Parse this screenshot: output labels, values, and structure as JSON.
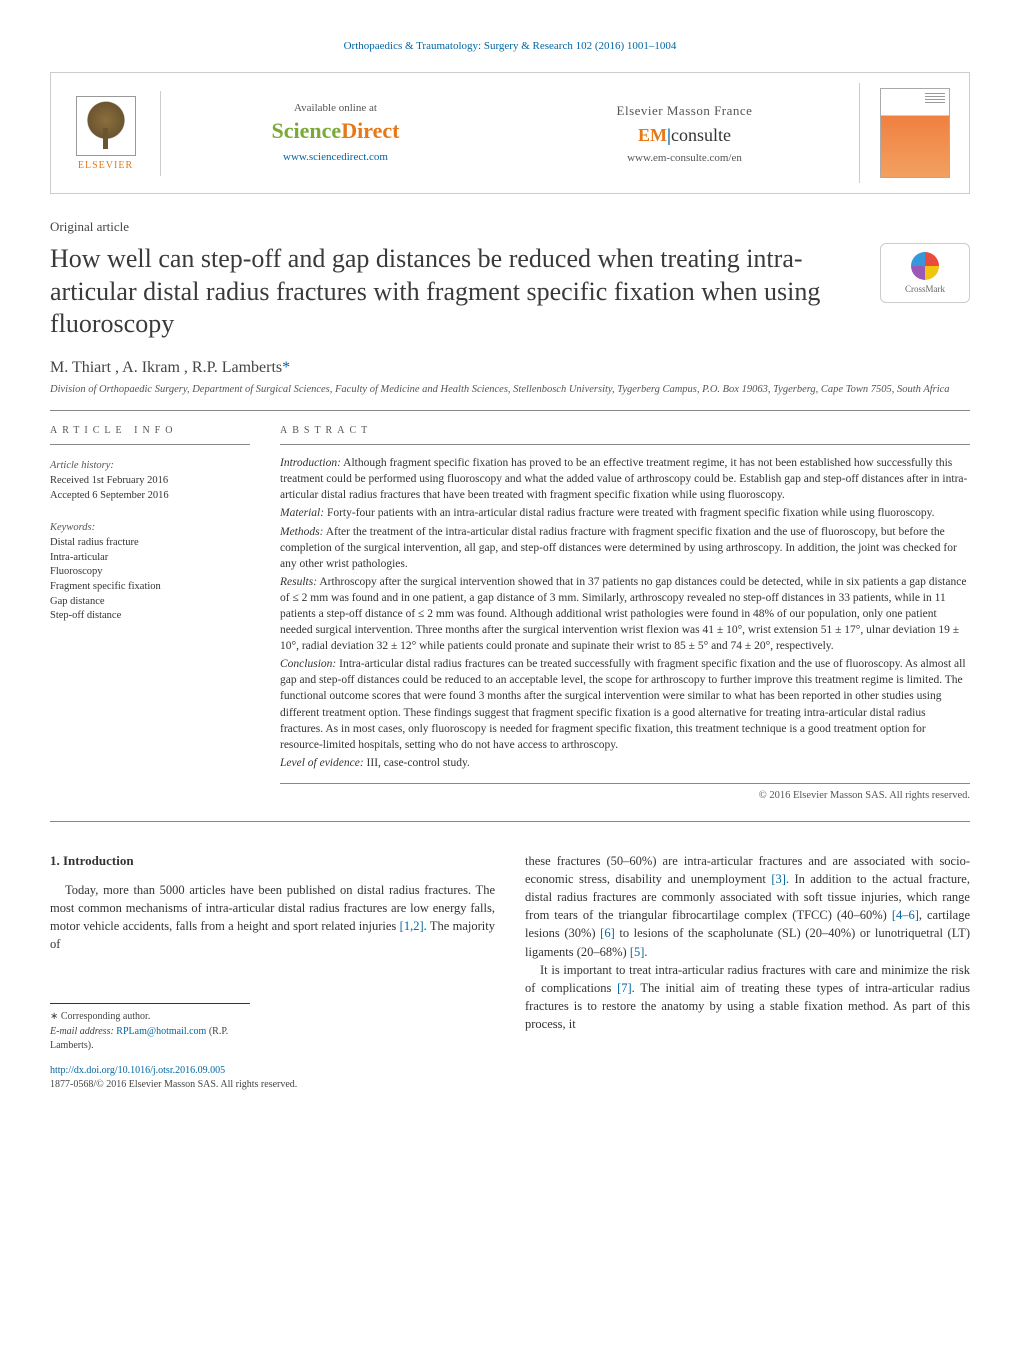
{
  "running_head": "Orthopaedics & Traumatology: Surgery & Research 102 (2016) 1001–1004",
  "banner": {
    "elsevier_label": "ELSEVIER",
    "sd_available": "Available online at",
    "sd_logo_sci": "Science",
    "sd_logo_dir": "Direct",
    "sd_link": "www.sciencedirect.com",
    "em_brand": "Elsevier Masson France",
    "em_logo_em": "EM",
    "em_logo_consulte": "consulte",
    "em_link": "www.em-consulte.com/en"
  },
  "article_type": "Original article",
  "title": "How well can step-off and gap distances be reduced when treating intra-articular distal radius fractures with fragment specific fixation when using fluoroscopy",
  "crossmark_label": "CrossMark",
  "authors": "M. Thiart , A. Ikram , R.P. Lamberts",
  "corr_marker": "*",
  "affiliation": "Division of Orthopaedic Surgery, Department of Surgical Sciences, Faculty of Medicine and Health Sciences, Stellenbosch University, Tygerberg Campus, P.O. Box 19063, Tygerberg, Cape Town 7505, South Africa",
  "meta": {
    "info_head": "article info",
    "history_label": "Article history:",
    "received": "Received 1st February 2016",
    "accepted": "Accepted 6 September 2016",
    "keywords_label": "Keywords:",
    "keywords": [
      "Distal radius fracture",
      "Intra-articular",
      "Fluoroscopy",
      "Fragment specific fixation",
      "Gap distance",
      "Step-off distance"
    ]
  },
  "abstract": {
    "head": "abstract",
    "intro_label": "Introduction:",
    "intro": "Although fragment specific fixation has proved to be an effective treatment regime, it has not been established how successfully this treatment could be performed using fluoroscopy and what the added value of arthroscopy could be. Establish gap and step-off distances after in intra-articular distal radius fractures that have been treated with fragment specific fixation while using fluoroscopy.",
    "material_label": "Material:",
    "material": "Forty-four patients with an intra-articular distal radius fracture were treated with fragment specific fixation while using fluoroscopy.",
    "methods_label": "Methods:",
    "methods": "After the treatment of the intra-articular distal radius fracture with fragment specific fixation and the use of fluoroscopy, but before the completion of the surgical intervention, all gap, and step-off distances were determined by using arthroscopy. In addition, the joint was checked for any other wrist pathologies.",
    "results_label": "Results:",
    "results": "Arthroscopy after the surgical intervention showed that in 37 patients no gap distances could be detected, while in six patients a gap distance of ≤ 2 mm was found and in one patient, a gap distance of 3 mm. Similarly, arthroscopy revealed no step-off distances in 33 patients, while in 11 patients a step-off distance of ≤ 2 mm was found. Although additional wrist pathologies were found in 48% of our population, only one patient needed surgical intervention. Three months after the surgical intervention wrist flexion was 41 ± 10°, wrist extension 51 ± 17°, ulnar deviation 19 ± 10°, radial deviation 32 ± 12° while patients could pronate and supinate their wrist to 85 ± 5° and 74 ± 20°, respectively.",
    "conclusion_label": "Conclusion:",
    "conclusion": "Intra-articular distal radius fractures can be treated successfully with fragment specific fixation and the use of fluoroscopy. As almost all gap and step-off distances could be reduced to an acceptable level, the scope for arthroscopy to further improve this treatment regime is limited. The functional outcome scores that were found 3 months after the surgical intervention were similar to what has been reported in other studies using different treatment option. These findings suggest that fragment specific fixation is a good alternative for treating intra-articular distal radius fractures. As in most cases, only fluoroscopy is needed for fragment specific fixation, this treatment technique is a good treatment option for resource-limited hospitals, setting who do not have access to arthroscopy.",
    "loe_label": "Level of evidence:",
    "loe": "III, case-control study.",
    "copyright": "© 2016 Elsevier Masson SAS. All rights reserved."
  },
  "body": {
    "section1_head": "1.  Introduction",
    "para1a": "Today, more than 5000 articles have been published on distal radius fractures. The most common mechanisms of intra-articular distal radius fractures are low energy falls, motor vehicle accidents, falls from a height and sport related injuries ",
    "cite12": "[1,2]",
    "para1b": ". The majority of",
    "para2a": "these fractures (50–60%) are intra-articular fractures and are associated with socio-economic stress, disability and unemployment ",
    "cite3": "[3]",
    "para2b": ". In addition to the actual fracture, distal radius fractures are commonly associated with soft tissue injuries, which range from tears of the triangular fibrocartilage complex (TFCC) (40–60%) ",
    "cite46": "[4–6]",
    "para2c": ", cartilage lesions (30%) ",
    "cite6": "[6]",
    "para2d": " to lesions of the scapholunate (SL) (20–40%) or lunotriquetral (LT) ligaments (20–68%) ",
    "cite5": "[5]",
    "para2e": ".",
    "para3a": "It is important to treat intra-articular radius fractures with care and minimize the risk of complications ",
    "cite7": "[7]",
    "para3b": ". The initial aim of treating these types of intra-articular radius fractures is to restore the anatomy by using a stable fixation method. As part of this process, it"
  },
  "footnotes": {
    "corr_label": "∗ Corresponding author.",
    "email_label": "E-mail address:",
    "email": "RPLam@hotmail.com",
    "email_paren": "(R.P. Lamberts)."
  },
  "doi": {
    "link": "http://dx.doi.org/10.1016/j.otsr.2016.09.005",
    "issn_line": "1877-0568/© 2016 Elsevier Masson SAS. All rights reserved."
  },
  "colors": {
    "link": "#0066a4",
    "orange": "#e67817",
    "green": "#7aa938",
    "text": "#333333",
    "muted": "#555555",
    "rule": "#888888"
  }
}
